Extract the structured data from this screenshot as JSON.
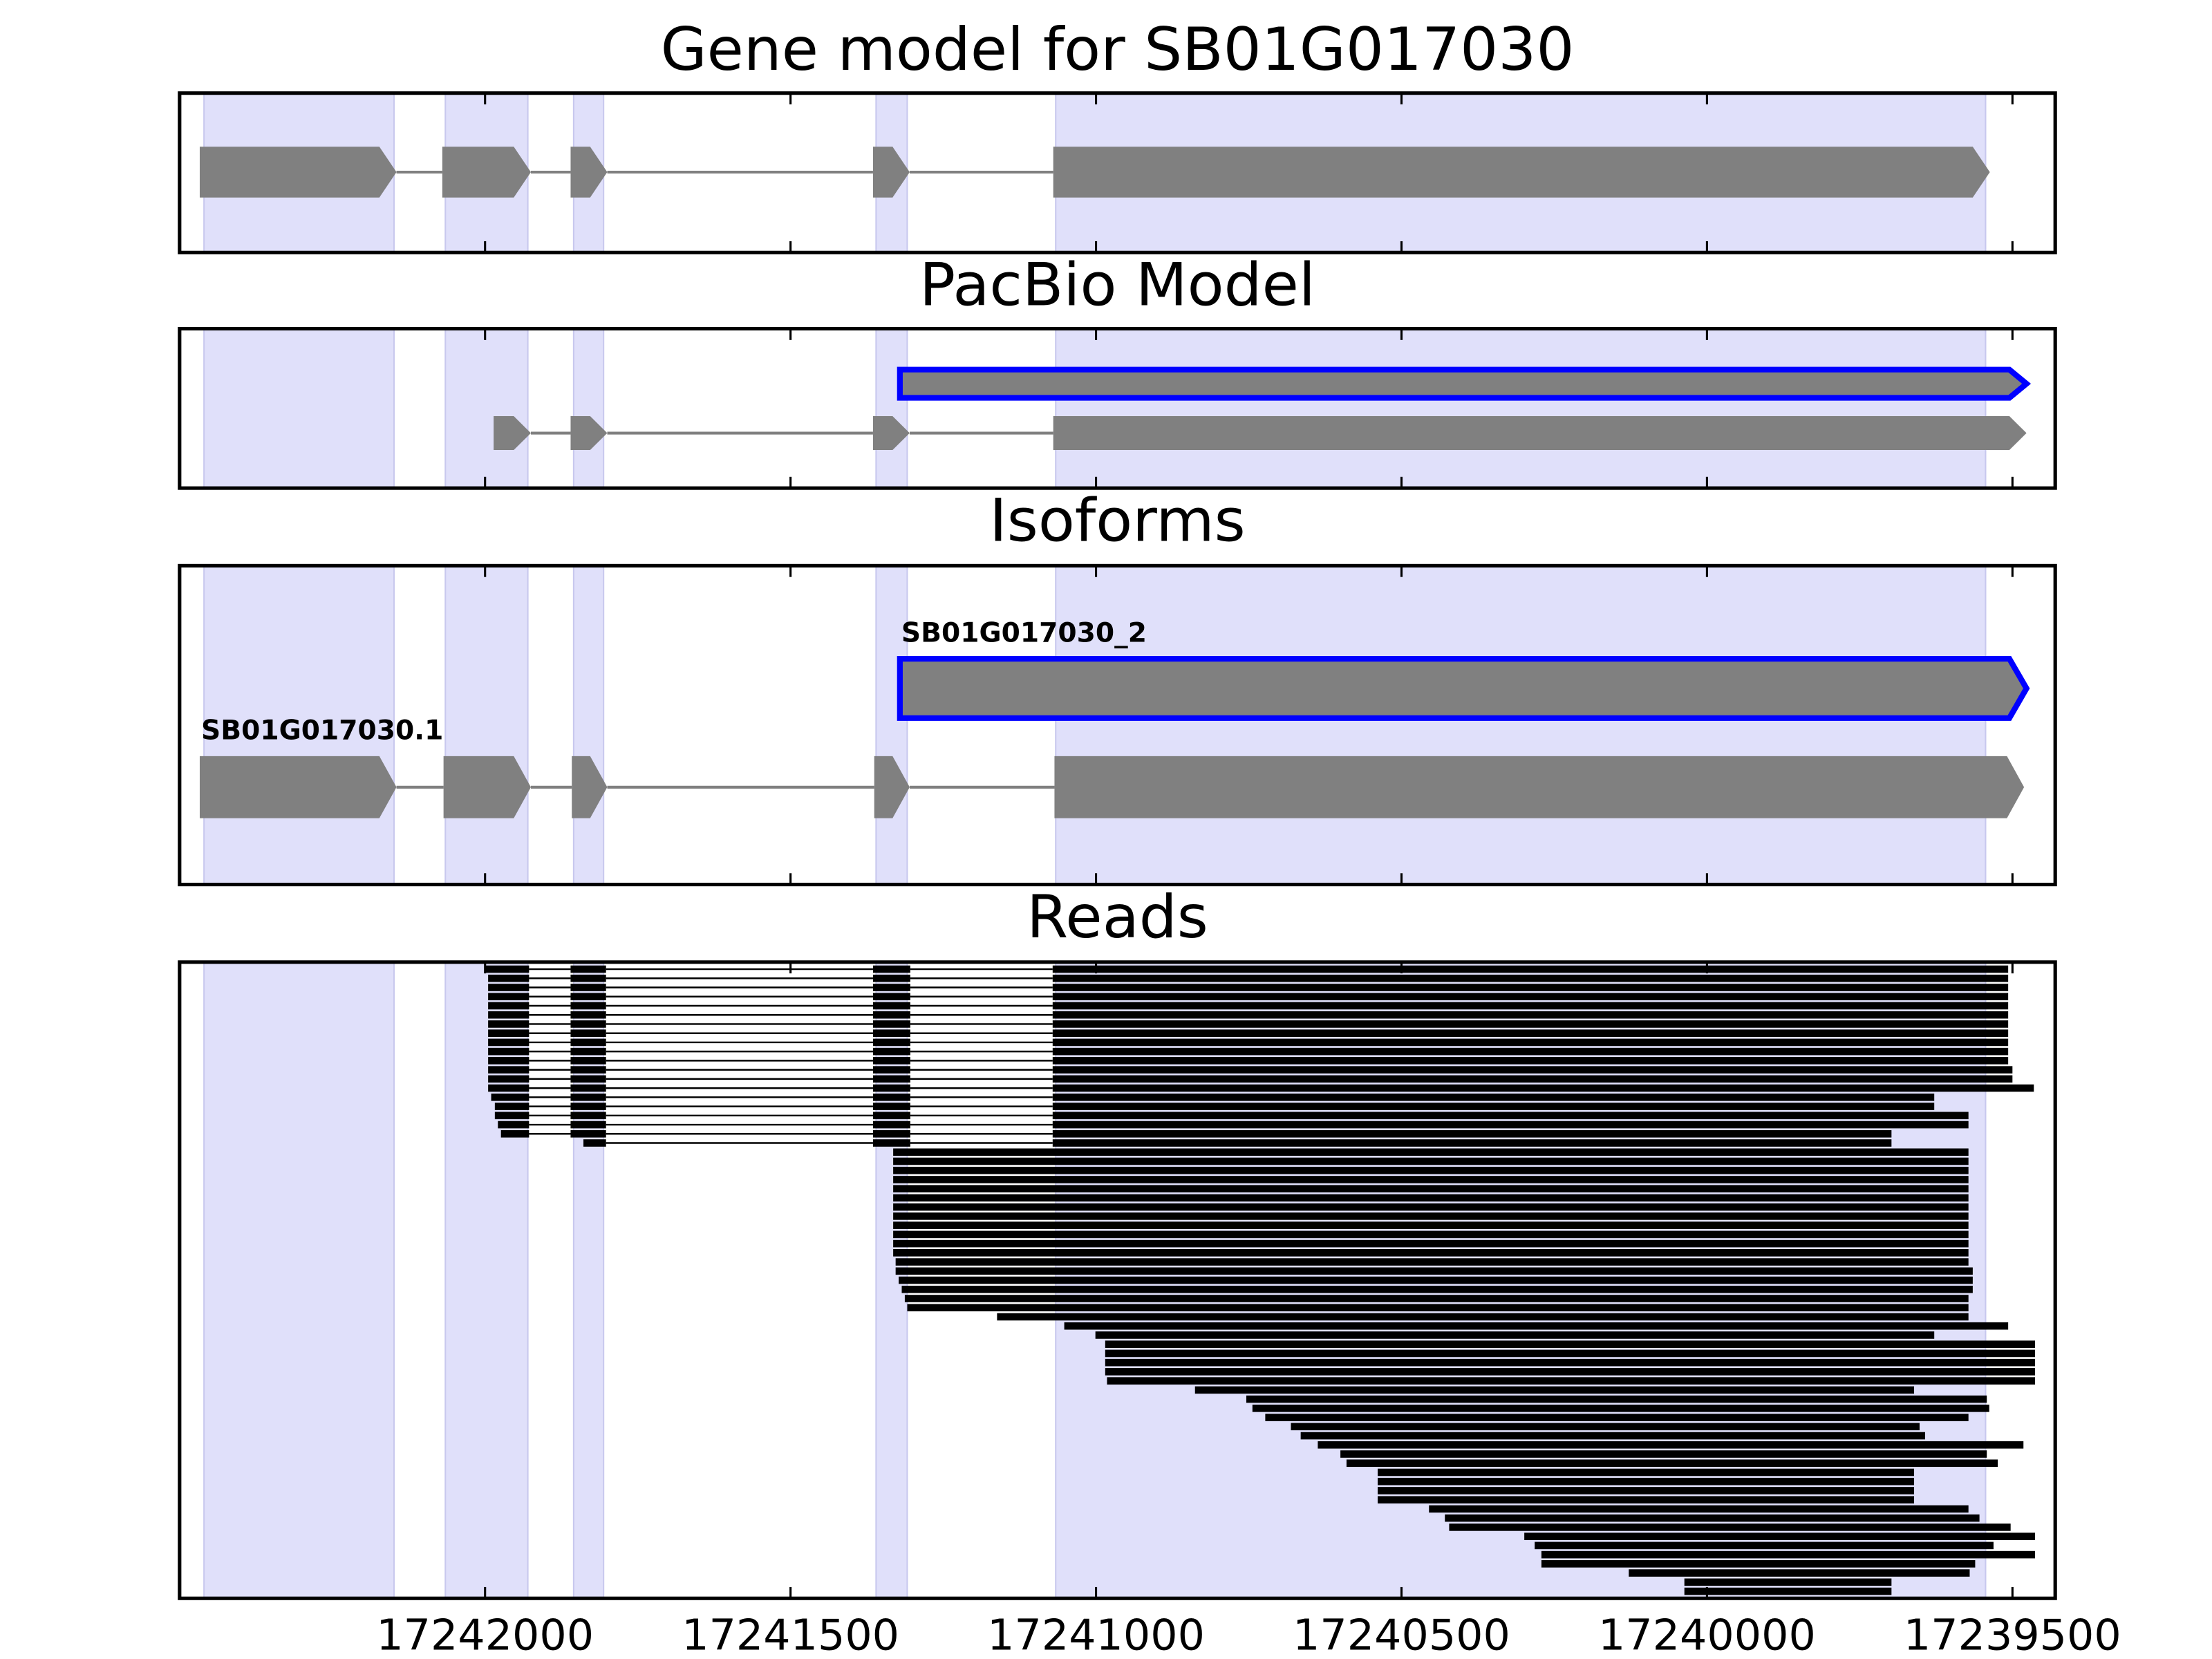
{
  "exon_regions": [
    [
      17242460,
      17242149
    ],
    [
      17242065,
      17241930
    ],
    [
      17241855,
      17241806
    ],
    [
      17241360,
      17241309
    ],
    [
      17241066,
      17239544
    ]
  ],
  "exon_region_color": "#e0e0fa",
  "chart_data": [
    {
      "type": "gene-model",
      "title": "Gene model for SB01G017030",
      "xlim": [
        17242500,
        17239430
      ],
      "xticks": [
        17242000,
        17241500,
        17241000,
        17240500,
        17240000,
        17239500
      ],
      "color": "#808080",
      "tracks": [
        {
          "exons": [
            [
              17242467,
              17242145
            ],
            [
              17242070,
              17241925
            ],
            [
              17241860,
              17241800
            ],
            [
              17241365,
              17241305
            ],
            [
              17241070,
              17239537
            ]
          ]
        }
      ]
    },
    {
      "type": "gene-model",
      "title": "PacBio Model",
      "xlim": [
        17242500,
        17239430
      ],
      "xticks": [
        17242000,
        17241500,
        17241000,
        17240500,
        17240000,
        17239500
      ],
      "color": "#808080",
      "tracks": [
        {
          "exons": [
            [
              17241321,
              17239477
            ]
          ],
          "outline": "#0000ff"
        },
        {
          "exons": [
            [
              17241986,
              17241925
            ],
            [
              17241860,
              17241800
            ],
            [
              17241365,
              17241305
            ],
            [
              17241070,
              17239477
            ]
          ]
        }
      ]
    },
    {
      "type": "gene-model",
      "title": "Isoforms",
      "xlim": [
        17242500,
        17239430
      ],
      "xticks": [
        17242000,
        17241500,
        17241000,
        17240500,
        17240000,
        17239500
      ],
      "color": "#808080",
      "tracks": [
        {
          "name": "SB01G017030_2",
          "exons": [
            [
              17241321,
              17239477
            ]
          ],
          "outline": "#0000ff"
        },
        {
          "name": "SB01G017030.1",
          "exons": [
            [
              17242467,
              17242145
            ],
            [
              17242068,
              17241925
            ],
            [
              17241858,
              17241800
            ],
            [
              17241363,
              17241305
            ],
            [
              17241068,
              17239481
            ]
          ]
        }
      ]
    },
    {
      "type": "reads",
      "title": "Reads",
      "xlim": [
        17242500,
        17239430
      ],
      "xticks": [
        17242000,
        17241500,
        17241000,
        17240500,
        17240000,
        17239500
      ],
      "color": "#000000",
      "tick_labels": true,
      "reads": [
        [
          [
            17242000,
            17241928
          ],
          [
            17241860,
            17241802
          ],
          [
            17241365,
            17241304
          ],
          [
            17241071,
            17239507
          ]
        ],
        [
          [
            17241995,
            17241928
          ],
          [
            17241860,
            17241802
          ],
          [
            17241365,
            17241304
          ],
          [
            17241071,
            17239507
          ]
        ],
        [
          [
            17241995,
            17241928
          ],
          [
            17241860,
            17241802
          ],
          [
            17241365,
            17241304
          ],
          [
            17241071,
            17239507
          ]
        ],
        [
          [
            17241995,
            17241928
          ],
          [
            17241860,
            17241802
          ],
          [
            17241365,
            17241304
          ],
          [
            17241071,
            17239507
          ]
        ],
        [
          [
            17241995,
            17241928
          ],
          [
            17241860,
            17241802
          ],
          [
            17241365,
            17241304
          ],
          [
            17241071,
            17239507
          ]
        ],
        [
          [
            17241995,
            17241928
          ],
          [
            17241860,
            17241802
          ],
          [
            17241365,
            17241304
          ],
          [
            17241071,
            17239507
          ]
        ],
        [
          [
            17241995,
            17241928
          ],
          [
            17241860,
            17241802
          ],
          [
            17241365,
            17241304
          ],
          [
            17241071,
            17239507
          ]
        ],
        [
          [
            17241995,
            17241928
          ],
          [
            17241860,
            17241802
          ],
          [
            17241365,
            17241304
          ],
          [
            17241071,
            17239507
          ]
        ],
        [
          [
            17241995,
            17241928
          ],
          [
            17241860,
            17241802
          ],
          [
            17241365,
            17241304
          ],
          [
            17241071,
            17239507
          ]
        ],
        [
          [
            17241995,
            17241928
          ],
          [
            17241860,
            17241802
          ],
          [
            17241365,
            17241304
          ],
          [
            17241071,
            17239507
          ]
        ],
        [
          [
            17241995,
            17241928
          ],
          [
            17241860,
            17241802
          ],
          [
            17241365,
            17241304
          ],
          [
            17241071,
            17239507
          ]
        ],
        [
          [
            17241995,
            17241928
          ],
          [
            17241860,
            17241802
          ],
          [
            17241365,
            17241304
          ],
          [
            17241071,
            17239500
          ]
        ],
        [
          [
            17241995,
            17241928
          ],
          [
            17241860,
            17241802
          ],
          [
            17241365,
            17241304
          ],
          [
            17241071,
            17239500
          ]
        ],
        [
          [
            17241995,
            17241928
          ],
          [
            17241860,
            17241802
          ],
          [
            17241365,
            17241304
          ],
          [
            17241071,
            17239465
          ]
        ],
        [
          [
            17241990,
            17241928
          ],
          [
            17241860,
            17241802
          ],
          [
            17241365,
            17241304
          ],
          [
            17241071,
            17239628
          ]
        ],
        [
          [
            17241984,
            17241928
          ],
          [
            17241860,
            17241802
          ],
          [
            17241365,
            17241304
          ],
          [
            17241071,
            17239628
          ]
        ],
        [
          [
            17241984,
            17241928
          ],
          [
            17241860,
            17241802
          ],
          [
            17241365,
            17241304
          ],
          [
            17241071,
            17239572
          ]
        ],
        [
          [
            17241979,
            17241928
          ],
          [
            17241860,
            17241802
          ],
          [
            17241365,
            17241304
          ],
          [
            17241071,
            17239572
          ]
        ],
        [
          [
            17241974,
            17241928
          ],
          [
            17241860,
            17241802
          ],
          [
            17241365,
            17241304
          ],
          [
            17241071,
            17239698
          ]
        ],
        [
          [
            17241839,
            17241802
          ],
          [
            17241365,
            17241304
          ],
          [
            17241071,
            17239698
          ]
        ],
        [
          [
            17241332,
            17239572
          ]
        ],
        [
          [
            17241332,
            17239572
          ]
        ],
        [
          [
            17241332,
            17239572
          ]
        ],
        [
          [
            17241332,
            17239572
          ]
        ],
        [
          [
            17241332,
            17239572
          ]
        ],
        [
          [
            17241332,
            17239572
          ]
        ],
        [
          [
            17241332,
            17239572
          ]
        ],
        [
          [
            17241332,
            17239572
          ]
        ],
        [
          [
            17241332,
            17239572
          ]
        ],
        [
          [
            17241332,
            17239572
          ]
        ],
        [
          [
            17241332,
            17239572
          ]
        ],
        [
          [
            17241332,
            17239572
          ]
        ],
        [
          [
            17241328,
            17239572
          ]
        ],
        [
          [
            17241328,
            17239565
          ]
        ],
        [
          [
            17241323,
            17239565
          ]
        ],
        [
          [
            17241318,
            17239565
          ]
        ],
        [
          [
            17241313,
            17239572
          ]
        ],
        [
          [
            17241309,
            17239572
          ]
        ],
        [
          [
            17241162,
            17239572
          ]
        ],
        [
          [
            17241052,
            17239507
          ]
        ],
        [
          [
            17241001,
            17239628
          ]
        ],
        [
          [
            17240985,
            17239463
          ]
        ],
        [
          [
            17240985,
            17239463
          ]
        ],
        [
          [
            17240985,
            17239463
          ]
        ],
        [
          [
            17240985,
            17239463
          ]
        ],
        [
          [
            17240982,
            17239463
          ]
        ],
        [
          [
            17240838,
            17239661
          ]
        ],
        [
          [
            17240754,
            17239542
          ]
        ],
        [
          [
            17240744,
            17239538
          ]
        ],
        [
          [
            17240723,
            17239572
          ]
        ],
        [
          [
            17240681,
            17239652
          ]
        ],
        [
          [
            17240665,
            17239643
          ]
        ],
        [
          [
            17240637,
            17239482
          ]
        ],
        [
          [
            17240600,
            17239542
          ]
        ],
        [
          [
            17240590,
            17239524
          ]
        ],
        [
          [
            17240539,
            17239661
          ]
        ],
        [
          [
            17240539,
            17239661
          ]
        ],
        [
          [
            17240539,
            17239661
          ]
        ],
        [
          [
            17240539,
            17239661
          ]
        ],
        [
          [
            17240455,
            17239572
          ]
        ],
        [
          [
            17240429,
            17239554
          ]
        ],
        [
          [
            17240422,
            17239503
          ]
        ],
        [
          [
            17240299,
            17239463
          ]
        ],
        [
          [
            17240282,
            17239531
          ]
        ],
        [
          [
            17240271,
            17239463
          ]
        ],
        [
          [
            17240271,
            17239561
          ]
        ],
        [
          [
            17240128,
            17239570
          ]
        ],
        [
          [
            17240037,
            17239698
          ]
        ],
        [
          [
            17240037,
            17239698
          ]
        ]
      ]
    }
  ]
}
